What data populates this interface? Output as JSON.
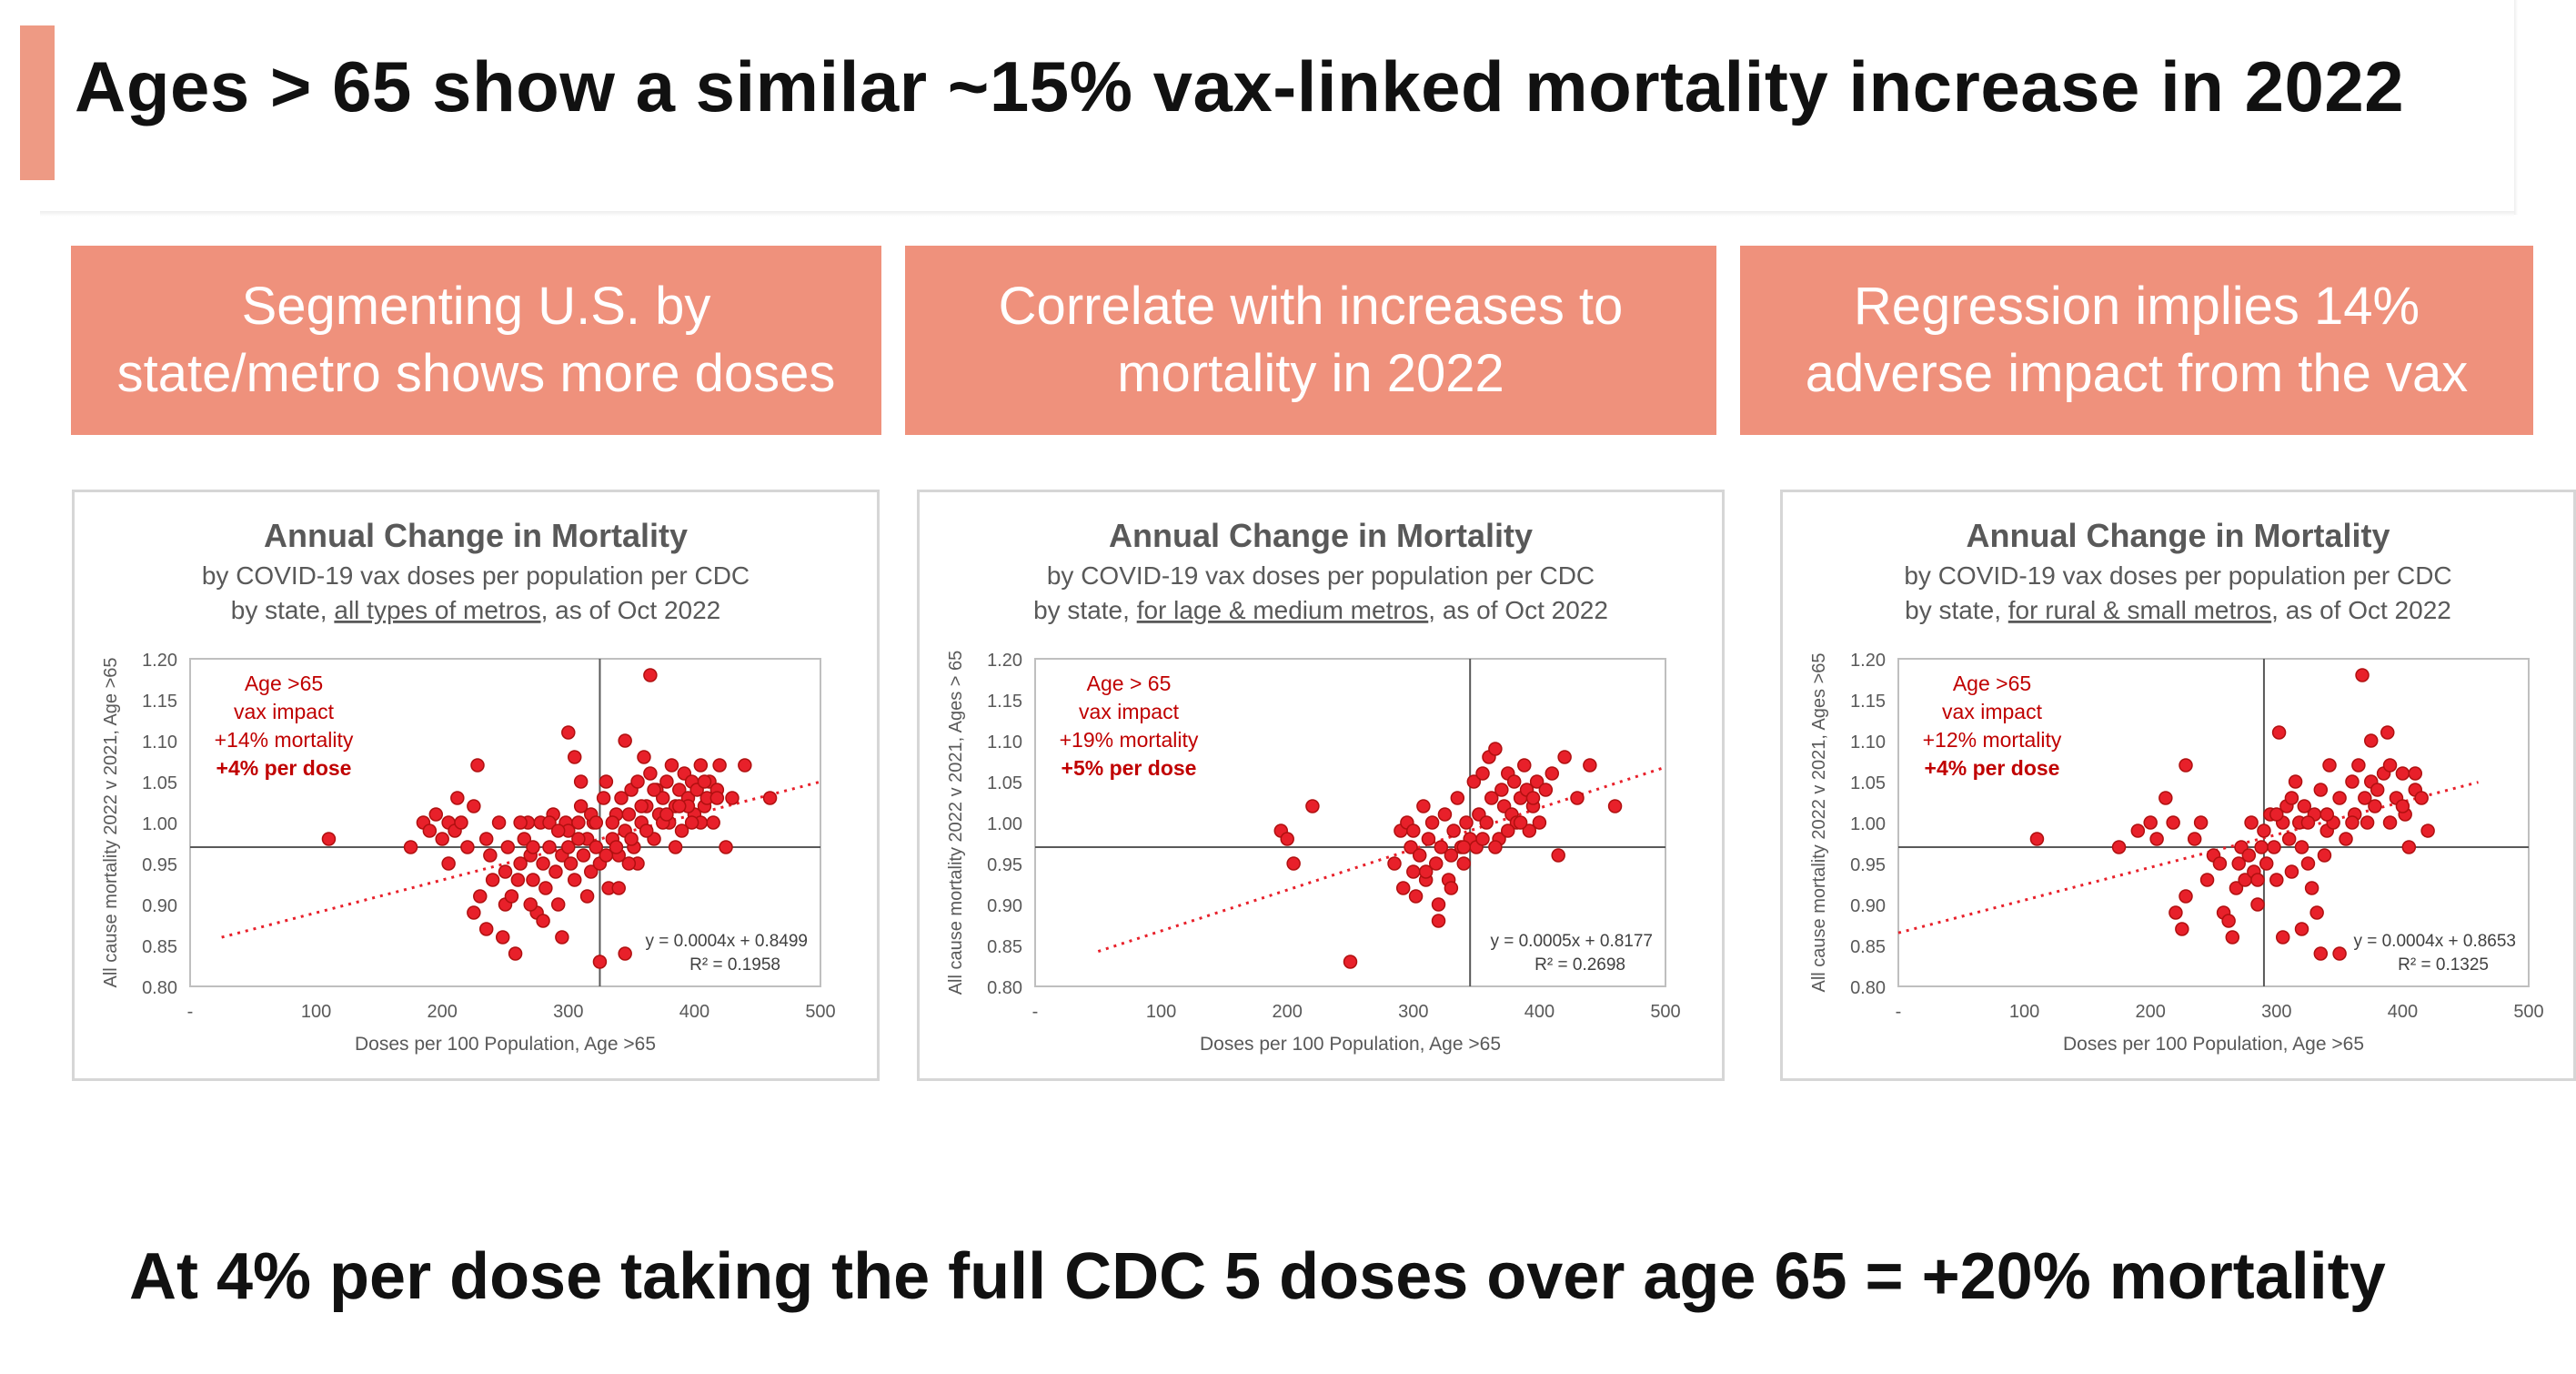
{
  "slide": {
    "title": "Ages > 65 show a similar ~15% vax-linked mortality increase in 2022",
    "footer": "At 4% per dose taking the full CDC 5 doses over age 65 = +20% mortality"
  },
  "colors": {
    "accent": "#ef917c",
    "points": "#e8202a",
    "annotation": "#c00000"
  },
  "banners": [
    {
      "text": "Segmenting U.S. by\nstate/metro shows more doses"
    },
    {
      "text": "Correlate with increases to\nmortality in 2022"
    },
    {
      "text": "Regression implies 14%\nadverse impact from the vax"
    }
  ],
  "chart_data": [
    {
      "type": "scatter",
      "title": "Annual Change in Mortality",
      "subtitle1": "by COVID-19 vax doses per population per CDC",
      "subtitle2_pre": "by state, ",
      "subtitle2_ul": "all types of metros",
      "subtitle2_post": ", as of Oct 2022",
      "xlabel": "Doses per 100 Population, Age >65",
      "ylabel": "All cause mortality 2022 v 2021, Age >65",
      "xlim": [
        0,
        500
      ],
      "ylim": [
        0.8,
        1.2
      ],
      "xticks": [
        "-",
        "100",
        "200",
        "300",
        "400",
        "500"
      ],
      "yticks": [
        "0.80",
        "0.85",
        "0.90",
        "0.95",
        "1.00",
        "1.05",
        "1.10",
        "1.15",
        "1.20"
      ],
      "ref_x": 325,
      "ref_y": 0.97,
      "annotation": [
        "Age >65",
        "vax impact",
        "+14% mortality",
        "+4% per dose"
      ],
      "equation": "y = 0.0004x + 0.8499",
      "r2": "R² = 0.1958",
      "trend": {
        "slope": 0.0004,
        "intercept": 0.8499,
        "x_range": [
          25,
          500
        ]
      },
      "points": [
        [
          110,
          0.98
        ],
        [
          175,
          0.97
        ],
        [
          185,
          1.0
        ],
        [
          190,
          0.99
        ],
        [
          195,
          1.01
        ],
        [
          200,
          0.98
        ],
        [
          205,
          1.0
        ],
        [
          210,
          0.99
        ],
        [
          215,
          1.0
        ],
        [
          220,
          0.97
        ],
        [
          225,
          1.02
        ],
        [
          228,
          1.07
        ],
        [
          235,
          0.98
        ],
        [
          238,
          0.96
        ],
        [
          245,
          1.0
        ],
        [
          250,
          0.94
        ],
        [
          205,
          0.95
        ],
        [
          212,
          1.03
        ],
        [
          225,
          0.89
        ],
        [
          230,
          0.91
        ],
        [
          235,
          0.87
        ],
        [
          240,
          0.93
        ],
        [
          248,
          0.86
        ],
        [
          250,
          0.9
        ],
        [
          255,
          0.91
        ],
        [
          258,
          0.84
        ],
        [
          262,
          0.95
        ],
        [
          265,
          0.98
        ],
        [
          268,
          1.0
        ],
        [
          270,
          0.96
        ],
        [
          272,
          0.93
        ],
        [
          275,
          0.89
        ],
        [
          278,
          1.0
        ],
        [
          280,
          0.95
        ],
        [
          282,
          0.92
        ],
        [
          285,
          0.97
        ],
        [
          288,
          1.01
        ],
        [
          290,
          0.94
        ],
        [
          292,
          0.9
        ],
        [
          295,
          0.96
        ],
        [
          298,
          1.0
        ],
        [
          300,
          0.97
        ],
        [
          302,
          0.95
        ],
        [
          305,
          0.93
        ],
        [
          308,
          1.0
        ],
        [
          310,
          1.02
        ],
        [
          312,
          0.96
        ],
        [
          315,
          0.98
        ],
        [
          318,
          0.94
        ],
        [
          320,
          1.0
        ],
        [
          322,
          0.97
        ],
        [
          325,
          0.95
        ],
        [
          328,
          1.03
        ],
        [
          330,
          1.05
        ],
        [
          332,
          0.92
        ],
        [
          335,
          0.98
        ],
        [
          338,
          1.01
        ],
        [
          340,
          0.96
        ],
        [
          342,
          1.03
        ],
        [
          345,
          0.99
        ],
        [
          348,
          1.01
        ],
        [
          350,
          1.04
        ],
        [
          352,
          0.97
        ],
        [
          355,
          1.05
        ],
        [
          358,
          1.0
        ],
        [
          360,
          1.08
        ],
        [
          362,
          1.02
        ],
        [
          365,
          1.06
        ],
        [
          368,
          0.98
        ],
        [
          370,
          1.04
        ],
        [
          372,
          1.01
        ],
        [
          375,
          1.03
        ],
        [
          378,
          1.05
        ],
        [
          380,
          1.0
        ],
        [
          382,
          1.07
        ],
        [
          385,
          1.02
        ],
        [
          388,
          1.04
        ],
        [
          390,
          0.99
        ],
        [
          392,
          1.06
        ],
        [
          395,
          1.03
        ],
        [
          398,
          1.05
        ],
        [
          400,
          1.01
        ],
        [
          402,
          1.04
        ],
        [
          405,
          1.07
        ],
        [
          408,
          1.02
        ],
        [
          410,
          1.03
        ],
        [
          412,
          1.05
        ],
        [
          415,
          1.0
        ],
        [
          418,
          1.04
        ],
        [
          420,
          1.07
        ],
        [
          425,
          0.97
        ],
        [
          430,
          1.03
        ],
        [
          440,
          1.07
        ],
        [
          460,
          1.03
        ],
        [
          300,
          1.11
        ],
        [
          305,
          1.08
        ],
        [
          310,
          1.05
        ],
        [
          345,
          1.1
        ],
        [
          365,
          1.18
        ],
        [
          325,
          0.83
        ],
        [
          345,
          0.84
        ],
        [
          295,
          0.86
        ],
        [
          280,
          0.88
        ],
        [
          270,
          0.9
        ],
        [
          260,
          0.93
        ],
        [
          340,
          0.92
        ],
        [
          355,
          0.95
        ],
        [
          330,
          0.96
        ],
        [
          315,
          0.91
        ],
        [
          285,
          1.0
        ],
        [
          300,
          0.99
        ],
        [
          318,
          1.01
        ],
        [
          335,
          1.0
        ],
        [
          350,
          0.98
        ],
        [
          362,
          0.99
        ],
        [
          375,
          1.0
        ],
        [
          385,
          0.97
        ],
        [
          395,
          1.02
        ],
        [
          405,
          1.0
        ],
        [
          252,
          0.97
        ],
        [
          262,
          1.0
        ],
        [
          272,
          0.97
        ],
        [
          292,
          0.99
        ],
        [
          308,
          0.98
        ],
        [
          322,
          1.0
        ],
        [
          338,
          0.97
        ],
        [
          348,
          0.95
        ],
        [
          358,
          1.02
        ],
        [
          368,
          1.04
        ],
        [
          378,
          1.01
        ],
        [
          388,
          1.02
        ],
        [
          398,
          1.0
        ],
        [
          408,
          1.05
        ],
        [
          418,
          1.03
        ]
      ]
    },
    {
      "type": "scatter",
      "title": "Annual Change in Mortality",
      "subtitle1": "by COVID-19 vax doses per population per CDC",
      "subtitle2_pre": "by state, ",
      "subtitle2_ul": "for lage & medium metros",
      "subtitle2_post": ", as of Oct 2022",
      "xlabel": "Doses per 100 Population, Age >65",
      "ylabel": "All cause mortality 2022 v 2021, Ages > 65",
      "xlim": [
        0,
        500
      ],
      "ylim": [
        0.8,
        1.2
      ],
      "xticks": [
        "-",
        "100",
        "200",
        "300",
        "400",
        "500"
      ],
      "yticks": [
        "0.80",
        "0.85",
        "0.90",
        "0.95",
        "1.00",
        "1.05",
        "1.10",
        "1.15",
        "1.20"
      ],
      "ref_x": 345,
      "ref_y": 0.97,
      "annotation": [
        "Age > 65",
        "vax impact",
        "+19% mortality",
        "+5% per dose"
      ],
      "equation": "y = 0.0005x + 0.8177",
      "r2": "R² = 0.2698",
      "trend": {
        "slope": 0.0005,
        "intercept": 0.8177,
        "x_range": [
          50,
          500
        ]
      },
      "points": [
        [
          195,
          0.99
        ],
        [
          200,
          0.98
        ],
        [
          205,
          0.95
        ],
        [
          220,
          1.02
        ],
        [
          250,
          0.83
        ],
        [
          285,
          0.95
        ],
        [
          290,
          0.99
        ],
        [
          292,
          0.92
        ],
        [
          295,
          1.0
        ],
        [
          298,
          0.97
        ],
        [
          300,
          0.94
        ],
        [
          302,
          0.91
        ],
        [
          305,
          0.96
        ],
        [
          308,
          1.02
        ],
        [
          310,
          0.93
        ],
        [
          312,
          0.98
        ],
        [
          315,
          1.0
        ],
        [
          318,
          0.95
        ],
        [
          320,
          0.9
        ],
        [
          322,
          0.97
        ],
        [
          325,
          1.01
        ],
        [
          328,
          0.93
        ],
        [
          330,
          0.96
        ],
        [
          332,
          0.99
        ],
        [
          335,
          1.03
        ],
        [
          338,
          0.97
        ],
        [
          340,
          0.95
        ],
        [
          342,
          1.0
        ],
        [
          345,
          0.98
        ],
        [
          348,
          1.05
        ],
        [
          350,
          0.97
        ],
        [
          352,
          1.01
        ],
        [
          355,
          1.06
        ],
        [
          358,
          1.0
        ],
        [
          360,
          1.08
        ],
        [
          362,
          1.03
        ],
        [
          365,
          1.09
        ],
        [
          368,
          0.98
        ],
        [
          370,
          1.04
        ],
        [
          372,
          1.02
        ],
        [
          375,
          1.06
        ],
        [
          378,
          1.01
        ],
        [
          380,
          1.05
        ],
        [
          382,
          1.0
        ],
        [
          385,
          1.03
        ],
        [
          388,
          1.07
        ],
        [
          390,
          1.04
        ],
        [
          392,
          0.99
        ],
        [
          395,
          1.02
        ],
        [
          398,
          1.05
        ],
        [
          400,
          1.0
        ],
        [
          405,
          1.04
        ],
        [
          410,
          1.06
        ],
        [
          415,
          0.96
        ],
        [
          420,
          1.08
        ],
        [
          430,
          1.03
        ],
        [
          440,
          1.07
        ],
        [
          460,
          1.02
        ],
        [
          320,
          0.88
        ],
        [
          330,
          0.92
        ],
        [
          310,
          0.94
        ],
        [
          340,
          0.97
        ],
        [
          300,
          0.99
        ],
        [
          355,
          0.98
        ],
        [
          365,
          0.97
        ],
        [
          375,
          0.99
        ],
        [
          385,
          1.0
        ],
        [
          395,
          1.03
        ]
      ]
    },
    {
      "type": "scatter",
      "title": "Annual Change in Mortality",
      "subtitle1": "by COVID-19 vax doses per population per CDC",
      "subtitle2_pre": "by state, ",
      "subtitle2_ul": "for rural & small metros",
      "subtitle2_post": ", as of Oct 2022",
      "xlabel": "Doses per 100 Population, Age >65",
      "ylabel": "All cause mortality 2022 v 2021, Ages >65",
      "xlim": [
        0,
        500
      ],
      "ylim": [
        0.8,
        1.2
      ],
      "xticks": [
        "-",
        "100",
        "200",
        "300",
        "400",
        "500"
      ],
      "yticks": [
        "0.80",
        "0.85",
        "0.90",
        "0.95",
        "1.00",
        "1.05",
        "1.10",
        "1.15",
        "1.20"
      ],
      "ref_x": 290,
      "ref_y": 0.97,
      "annotation": [
        "Age >65",
        "vax impact",
        "+12% mortality",
        "+4% per dose"
      ],
      "equation": "y = 0.0004x + 0.8653",
      "r2": "R² = 0.1325",
      "trend": {
        "slope": 0.0004,
        "intercept": 0.8653,
        "x_range": [
          0,
          460
        ]
      },
      "points": [
        [
          110,
          0.98
        ],
        [
          175,
          0.97
        ],
        [
          190,
          0.99
        ],
        [
          200,
          1.0
        ],
        [
          205,
          0.98
        ],
        [
          212,
          1.03
        ],
        [
          218,
          1.0
        ],
        [
          228,
          1.07
        ],
        [
          235,
          0.98
        ],
        [
          240,
          1.0
        ],
        [
          250,
          0.96
        ],
        [
          220,
          0.89
        ],
        [
          225,
          0.87
        ],
        [
          228,
          0.91
        ],
        [
          245,
          0.93
        ],
        [
          255,
          0.95
        ],
        [
          258,
          0.89
        ],
        [
          262,
          0.88
        ],
        [
          265,
          0.86
        ],
        [
          268,
          0.92
        ],
        [
          270,
          0.95
        ],
        [
          272,
          0.97
        ],
        [
          275,
          0.93
        ],
        [
          278,
          0.96
        ],
        [
          280,
          1.0
        ],
        [
          282,
          0.94
        ],
        [
          285,
          0.9
        ],
        [
          288,
          0.97
        ],
        [
          290,
          0.99
        ],
        [
          292,
          0.95
        ],
        [
          295,
          1.01
        ],
        [
          298,
          0.97
        ],
        [
          300,
          0.93
        ],
        [
          302,
          1.11
        ],
        [
          305,
          1.0
        ],
        [
          308,
          1.02
        ],
        [
          310,
          0.98
        ],
        [
          312,
          0.94
        ],
        [
          315,
          1.05
        ],
        [
          318,
          1.0
        ],
        [
          320,
          0.97
        ],
        [
          322,
          1.02
        ],
        [
          325,
          0.95
        ],
        [
          328,
          0.92
        ],
        [
          330,
          1.01
        ],
        [
          332,
          0.89
        ],
        [
          335,
          1.04
        ],
        [
          338,
          0.96
        ],
        [
          340,
          0.99
        ],
        [
          342,
          1.07
        ],
        [
          345,
          1.0
        ],
        [
          350,
          1.03
        ],
        [
          355,
          0.98
        ],
        [
          360,
          1.05
        ],
        [
          362,
          1.01
        ],
        [
          365,
          1.07
        ],
        [
          368,
          1.18
        ],
        [
          370,
          1.03
        ],
        [
          372,
          1.0
        ],
        [
          375,
          1.05
        ],
        [
          378,
          1.02
        ],
        [
          380,
          1.04
        ],
        [
          385,
          1.06
        ],
        [
          388,
          1.11
        ],
        [
          390,
          1.0
        ],
        [
          395,
          1.03
        ],
        [
          400,
          1.06
        ],
        [
          402,
          1.01
        ],
        [
          405,
          0.97
        ],
        [
          410,
          1.04
        ],
        [
          415,
          1.03
        ],
        [
          420,
          0.99
        ],
        [
          335,
          0.84
        ],
        [
          350,
          0.84
        ],
        [
          305,
          0.86
        ],
        [
          320,
          0.87
        ],
        [
          285,
          0.93
        ],
        [
          300,
          1.01
        ],
        [
          312,
          1.03
        ],
        [
          325,
          1.0
        ],
        [
          340,
          1.01
        ],
        [
          360,
          1.0
        ],
        [
          375,
          1.1
        ],
        [
          390,
          1.07
        ],
        [
          400,
          1.02
        ],
        [
          410,
          1.06
        ]
      ]
    }
  ]
}
